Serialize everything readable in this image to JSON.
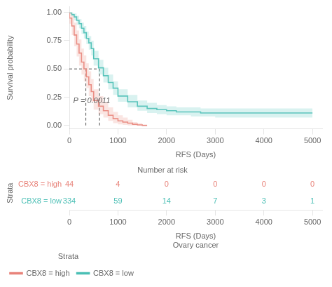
{
  "chart_data": {
    "type": "line",
    "x_label": "RFS (Days)",
    "y_label": "Survival probability",
    "xlim": [
      0,
      5200
    ],
    "ylim": [
      -0.03,
      1.05
    ],
    "xticks": [
      0,
      1000,
      2000,
      3000,
      4000,
      5000
    ],
    "yticks": [
      {
        "value": 0,
        "label": "0.00"
      },
      0.25,
      {
        "value": 0.5,
        "label": "0.50"
      },
      0.75,
      {
        "value": 1,
        "label": "1.00"
      }
    ],
    "grid": false,
    "legend": "lower left",
    "legend_title": "Strata",
    "series": [
      {
        "name": "CBX8 = high",
        "color": "#E8837A",
        "fill_color": "#EFA89F",
        "line_style": "step",
        "x": [
          0,
          50,
          100,
          150,
          200,
          250,
          300,
          350,
          400,
          450,
          500,
          600,
          700,
          800,
          900,
          1000,
          1100,
          1200,
          1300,
          1400,
          1500,
          1600
        ],
        "values": [
          1.0,
          0.95,
          0.88,
          0.8,
          0.72,
          0.64,
          0.56,
          0.5,
          0.43,
          0.36,
          0.3,
          0.22,
          0.17,
          0.13,
          0.09,
          0.06,
          0.04,
          0.03,
          0.02,
          0.01,
          0.005,
          0.0
        ],
        "upper": [
          1.0,
          1.0,
          0.97,
          0.91,
          0.84,
          0.76,
          0.68,
          0.62,
          0.55,
          0.48,
          0.41,
          0.32,
          0.26,
          0.21,
          0.16,
          0.12,
          0.09,
          0.07,
          0.05,
          0.03,
          0.02,
          0.01
        ],
        "lower": [
          1.0,
          0.9,
          0.8,
          0.7,
          0.61,
          0.53,
          0.45,
          0.39,
          0.33,
          0.26,
          0.21,
          0.14,
          0.1,
          0.07,
          0.04,
          0.02,
          0.01,
          0.005,
          0.0,
          0.0,
          0.0,
          0.0
        ]
      },
      {
        "name": "CBX8 = low",
        "color": "#4BBFB5",
        "fill_color": "#82D4CC",
        "line_style": "step",
        "x": [
          0,
          50,
          100,
          150,
          200,
          250,
          300,
          350,
          400,
          450,
          500,
          600,
          700,
          800,
          900,
          1000,
          1200,
          1400,
          1600,
          1800,
          2000,
          2200,
          2500,
          2700,
          3000,
          3300,
          3500,
          4000,
          4500,
          5000
        ],
        "values": [
          1.0,
          0.995,
          0.98,
          0.96,
          0.93,
          0.9,
          0.86,
          0.82,
          0.77,
          0.73,
          0.68,
          0.59,
          0.51,
          0.44,
          0.38,
          0.33,
          0.26,
          0.21,
          0.17,
          0.15,
          0.14,
          0.13,
          0.12,
          0.12,
          0.11,
          0.11,
          0.11,
          0.11,
          0.11,
          0.11
        ],
        "upper": [
          1.0,
          1.0,
          0.995,
          0.99,
          0.97,
          0.94,
          0.91,
          0.88,
          0.83,
          0.79,
          0.75,
          0.66,
          0.58,
          0.51,
          0.45,
          0.39,
          0.32,
          0.27,
          0.22,
          0.2,
          0.18,
          0.17,
          0.16,
          0.16,
          0.15,
          0.15,
          0.15,
          0.15,
          0.15,
          0.15
        ],
        "lower": [
          1.0,
          0.99,
          0.965,
          0.93,
          0.89,
          0.86,
          0.81,
          0.77,
          0.72,
          0.67,
          0.62,
          0.53,
          0.45,
          0.38,
          0.32,
          0.27,
          0.21,
          0.16,
          0.13,
          0.11,
          0.1,
          0.09,
          0.09,
          0.08,
          0.08,
          0.07,
          0.07,
          0.07,
          0.07,
          0.07
        ]
      }
    ],
    "reference_lines": {
      "color": "#333333",
      "line_style": "dashed",
      "segments": [
        {
          "x": [
            0,
            620
          ],
          "y": [
            0.5,
            0.5
          ]
        },
        {
          "x": [
            340,
            340
          ],
          "y": [
            0,
            0.5
          ]
        },
        {
          "x": [
            620,
            620
          ],
          "y": [
            0,
            0.5
          ]
        }
      ]
    },
    "annotations": [
      {
        "text": "P = 0.0011",
        "x": 80,
        "y": 0.2
      }
    ],
    "risk_table": {
      "title": "Number at risk",
      "y_label": "Strata",
      "x_label": "RFS (Days)\nOvary cancer",
      "x": [
        0,
        1000,
        2000,
        3000,
        4000,
        5000
      ],
      "xticks": [
        0,
        1000,
        2000,
        3000,
        4000,
        5000
      ],
      "rows": [
        {
          "name": "CBX8 = high",
          "color": "#E8837A",
          "values": [
            44,
            4,
            0,
            0,
            0,
            0
          ]
        },
        {
          "name": "CBX8 = low",
          "color": "#4BBFB5",
          "values": [
            334,
            59,
            14,
            7,
            3,
            1
          ]
        }
      ]
    }
  }
}
